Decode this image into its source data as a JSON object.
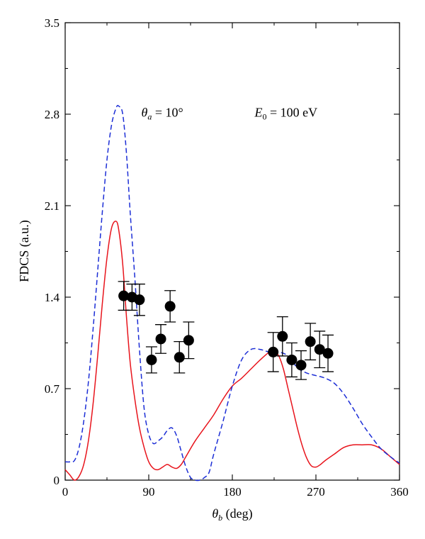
{
  "chart_data": {
    "type": "line",
    "title": "",
    "xlabel": {
      "symbol": "θ",
      "sub": "b",
      "rest": " (deg)"
    },
    "ylabel": "FDCS (a.u.)",
    "xlim": [
      0,
      360
    ],
    "ylim": [
      0,
      3.5
    ],
    "xticks": [
      0,
      90,
      180,
      270,
      360
    ],
    "yticks": [
      0,
      0.7,
      1.4,
      2.1,
      2.8,
      3.5
    ],
    "xtick_labels": [
      "0",
      "90",
      "180",
      "270",
      "360"
    ],
    "ytick_labels": [
      "0",
      "0.7",
      "1.4",
      "2.1",
      "2.8",
      "3.5"
    ],
    "grid": false,
    "annotations": [
      {
        "symbol": "θ",
        "sub": "a",
        "rest": " = 10°",
        "x": 82,
        "y": 2.78
      },
      {
        "symbol": "E",
        "sub": "0",
        "rest": " = 100 eV",
        "x": 204,
        "y": 2.78
      }
    ],
    "series": [
      {
        "style": "solid",
        "color": "#e8141c",
        "x": [
          0,
          5,
          10,
          15,
          20,
          25,
          30,
          35,
          40,
          45,
          50,
          55,
          58,
          62,
          66,
          70,
          75,
          80,
          85,
          90,
          95,
          100,
          105,
          110,
          115,
          120,
          125,
          130,
          140,
          150,
          160,
          170,
          180,
          190,
          200,
          210,
          220,
          225,
          230,
          235,
          240,
          245,
          250,
          255,
          260,
          265,
          270,
          275,
          280,
          290,
          300,
          310,
          320,
          330,
          340,
          350,
          360
        ],
        "y": [
          0.08,
          0.04,
          0.0,
          0.03,
          0.12,
          0.3,
          0.58,
          0.95,
          1.35,
          1.7,
          1.93,
          1.98,
          1.9,
          1.65,
          1.25,
          0.9,
          0.62,
          0.4,
          0.25,
          0.14,
          0.09,
          0.08,
          0.1,
          0.12,
          0.1,
          0.09,
          0.12,
          0.18,
          0.3,
          0.4,
          0.5,
          0.62,
          0.72,
          0.78,
          0.85,
          0.92,
          0.98,
          0.98,
          0.95,
          0.85,
          0.7,
          0.55,
          0.4,
          0.27,
          0.17,
          0.11,
          0.1,
          0.12,
          0.15,
          0.2,
          0.25,
          0.27,
          0.27,
          0.27,
          0.24,
          0.18,
          0.12
        ]
      },
      {
        "style": "dashed",
        "color": "#1c2ed6",
        "x": [
          0,
          5,
          10,
          15,
          20,
          25,
          30,
          35,
          40,
          45,
          50,
          55,
          58,
          62,
          66,
          70,
          75,
          80,
          85,
          90,
          95,
          100,
          105,
          110,
          115,
          120,
          125,
          130,
          135,
          140,
          145,
          150,
          155,
          160,
          170,
          180,
          190,
          200,
          210,
          220,
          230,
          240,
          250,
          260,
          270,
          280,
          290,
          300,
          310,
          320,
          330,
          340,
          350,
          360
        ],
        "y": [
          0.14,
          0.14,
          0.15,
          0.25,
          0.45,
          0.75,
          1.15,
          1.6,
          2.05,
          2.45,
          2.72,
          2.85,
          2.86,
          2.8,
          2.5,
          2.05,
          1.55,
          1.0,
          0.55,
          0.35,
          0.28,
          0.3,
          0.33,
          0.38,
          0.4,
          0.34,
          0.22,
          0.1,
          0.02,
          0.0,
          0.0,
          0.02,
          0.06,
          0.2,
          0.45,
          0.72,
          0.92,
          1.0,
          1.0,
          0.98,
          0.98,
          0.95,
          0.86,
          0.82,
          0.8,
          0.78,
          0.74,
          0.66,
          0.55,
          0.43,
          0.33,
          0.24,
          0.18,
          0.13
        ]
      }
    ],
    "experiment": {
      "marker": "filled-circle",
      "x": [
        63,
        72,
        80,
        93,
        103,
        113,
        123,
        133,
        224,
        234,
        244,
        254,
        264,
        274,
        283
      ],
      "y": [
        1.41,
        1.4,
        1.38,
        0.92,
        1.08,
        1.33,
        0.94,
        1.07,
        0.98,
        1.1,
        0.92,
        0.88,
        1.06,
        1.0,
        0.97
      ],
      "err": [
        0.11,
        0.1,
        0.12,
        0.1,
        0.11,
        0.12,
        0.12,
        0.14,
        0.15,
        0.15,
        0.13,
        0.11,
        0.14,
        0.14,
        0.14
      ]
    }
  }
}
